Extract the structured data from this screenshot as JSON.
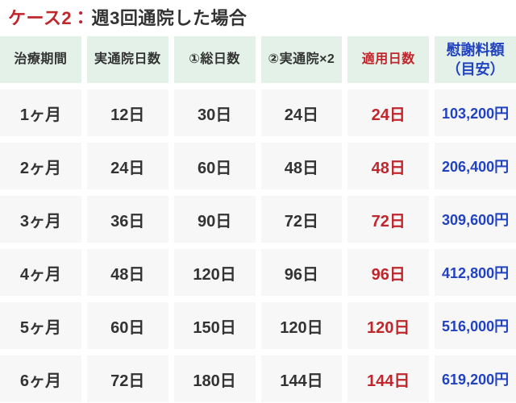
{
  "title": {
    "case_label": "ケース2：",
    "text": "週3回通院した場合"
  },
  "colors": {
    "accent_red": "#bf272d",
    "amount_blue": "#2243c0",
    "header_bg": "#e3f1e8",
    "cell_bg": "#f7f7f7",
    "text_dark": "#333333"
  },
  "table": {
    "headers": [
      "治療期間",
      "実通院日数",
      "①総日数",
      "②実通院×2",
      "適用日数",
      "慰謝料額\n（目安）"
    ],
    "rows": [
      [
        "1ヶ月",
        "12日",
        "30日",
        "24日",
        "24日",
        "103,200円"
      ],
      [
        "2ヶ月",
        "24日",
        "60日",
        "48日",
        "48日",
        "206,400円"
      ],
      [
        "3ヶ月",
        "36日",
        "90日",
        "72日",
        "72日",
        "309,600円"
      ],
      [
        "4ヶ月",
        "48日",
        "120日",
        "96日",
        "96日",
        "412,800円"
      ],
      [
        "5ヶ月",
        "60日",
        "150日",
        "120日",
        "120日",
        "516,000円"
      ],
      [
        "6ヶ月",
        "72日",
        "180日",
        "144日",
        "144日",
        "619,200円"
      ]
    ]
  },
  "chart_data": {
    "type": "table",
    "title": "ケース2：週3回通院した場合",
    "columns": [
      "治療期間",
      "実通院日数",
      "①総日数",
      "②実通院×2",
      "適用日数",
      "慰謝料額（目安）"
    ],
    "rows": [
      [
        "1ヶ月",
        "12日",
        "30日",
        "24日",
        "24日",
        "103,200円"
      ],
      [
        "2ヶ月",
        "24日",
        "60日",
        "48日",
        "48日",
        "206,400円"
      ],
      [
        "3ヶ月",
        "36日",
        "90日",
        "72日",
        "72日",
        "309,600円"
      ],
      [
        "4ヶ月",
        "48日",
        "120日",
        "96日",
        "96日",
        "412,800円"
      ],
      [
        "5ヶ月",
        "60日",
        "150日",
        "120日",
        "120日",
        "516,000円"
      ],
      [
        "6ヶ月",
        "72日",
        "180日",
        "144日",
        "144日",
        "619,200円"
      ]
    ],
    "notes": {
      "highlight_column_red": "適用日数",
      "highlight_column_blue": "慰謝料額（目安）"
    }
  }
}
